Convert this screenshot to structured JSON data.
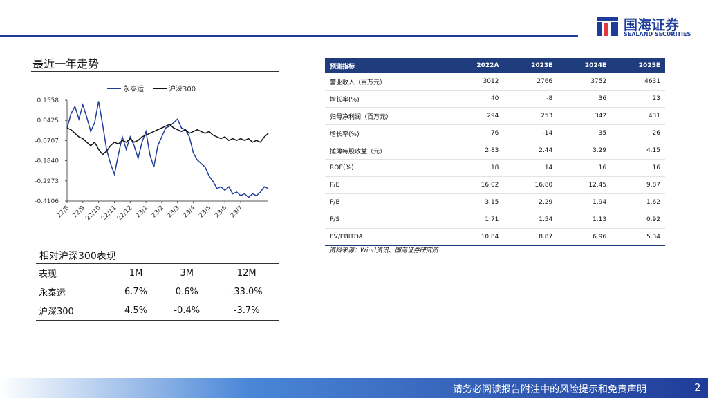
{
  "header": {
    "brand": "国海证券",
    "brand_en": "SEALAND SECURITIES"
  },
  "chart_section_title": "最近一年走势",
  "chart_data": {
    "type": "line",
    "categories": [
      "22/8",
      null,
      null,
      null,
      "22/9",
      null,
      null,
      null,
      "22/10",
      null,
      null,
      null,
      "22/11",
      null,
      null,
      null,
      "22/12",
      null,
      null,
      null,
      "23/1",
      null,
      null,
      null,
      "23/2",
      null,
      null,
      null,
      "23/3",
      null,
      null,
      null,
      "23/4",
      null,
      null,
      null,
      "23/5",
      null,
      null,
      null,
      "23/6",
      null,
      null,
      null,
      "23/7",
      null,
      null,
      null,
      null,
      null,
      null,
      null
    ],
    "series": [
      {
        "name": "永泰运",
        "color": "#1f3c99",
        "values": [
          0.0,
          0.08,
          0.12,
          0.05,
          0.13,
          0.06,
          -0.02,
          0.03,
          0.15,
          0.02,
          -0.12,
          -0.2,
          -0.26,
          -0.15,
          -0.05,
          -0.12,
          -0.05,
          -0.1,
          -0.17,
          -0.08,
          -0.02,
          -0.15,
          -0.22,
          -0.1,
          -0.05,
          0.0,
          0.01,
          0.03,
          0.05,
          0.0,
          -0.01,
          -0.05,
          -0.14,
          -0.18,
          -0.2,
          -0.22,
          -0.27,
          -0.3,
          -0.34,
          -0.33,
          -0.35,
          -0.33,
          -0.37,
          -0.36,
          -0.38,
          -0.37,
          -0.39,
          -0.37,
          -0.38,
          -0.36,
          -0.33,
          -0.34
        ]
      },
      {
        "name": "沪深300",
        "color": "#111111",
        "values": [
          0.0,
          -0.01,
          -0.03,
          -0.05,
          -0.06,
          -0.08,
          -0.1,
          -0.08,
          -0.12,
          -0.15,
          -0.13,
          -0.1,
          -0.08,
          -0.09,
          -0.07,
          -0.08,
          -0.06,
          -0.08,
          -0.07,
          -0.05,
          -0.04,
          -0.03,
          -0.02,
          -0.01,
          0.0,
          0.01,
          0.02,
          0.0,
          -0.01,
          -0.02,
          -0.01,
          -0.03,
          -0.02,
          -0.01,
          -0.02,
          -0.03,
          -0.02,
          -0.04,
          -0.05,
          -0.06,
          -0.05,
          -0.07,
          -0.06,
          -0.07,
          -0.06,
          -0.07,
          -0.06,
          -0.08,
          -0.07,
          -0.08,
          -0.05,
          -0.03
        ]
      }
    ],
    "ylim": [
      -0.4106,
      0.1558
    ],
    "yticks": [
      0.1558,
      0.0425,
      -0.0707,
      {
        "value": -0.184,
        "label": "-0.1840"
      },
      -0.2973,
      -0.4106
    ]
  },
  "perf_table": {
    "title": "相对沪深300表现",
    "header": [
      "表现",
      "1M",
      "3M",
      "12M"
    ],
    "rows": [
      [
        "永泰运",
        "6.7%",
        "0.6%",
        "-33.0%"
      ],
      [
        "沪深300",
        "4.5%",
        "-0.4%",
        "-3.7%"
      ]
    ]
  },
  "forecast_table": {
    "header": [
      "预测指标",
      "2022A",
      "2023E",
      "2024E",
      "2025E"
    ],
    "rows": [
      [
        "营业收入（百万元）",
        "3012",
        "2766",
        "3752",
        "4631"
      ],
      [
        "增长率(%)",
        "40",
        "-8",
        "36",
        "23"
      ],
      [
        "归母净利润（百万元）",
        "294",
        "253",
        "342",
        "431"
      ],
      [
        "增长率(%)",
        "76",
        "-14",
        "35",
        "26"
      ],
      [
        "摊薄每股收益（元）",
        "2.83",
        "2.44",
        "3.29",
        "4.15"
      ],
      [
        "ROE(%)",
        "18",
        "14",
        "16",
        "16"
      ],
      [
        "P/E",
        "16.02",
        "16.80",
        "12.45",
        "9.87"
      ],
      [
        "P/B",
        "3.15",
        "2.29",
        "1.94",
        "1.62"
      ],
      [
        "P/S",
        "1.71",
        "1.54",
        "1.13",
        "0.92"
      ],
      [
        "EV/EBITDA",
        "10.84",
        "8.87",
        "6.96",
        "5.34"
      ]
    ],
    "source": "资料来源：Wind资讯、国海证券研究所"
  },
  "footer": {
    "disclaimer": "请务必阅读报告附注中的风险提示和免责声明",
    "page": "2"
  }
}
